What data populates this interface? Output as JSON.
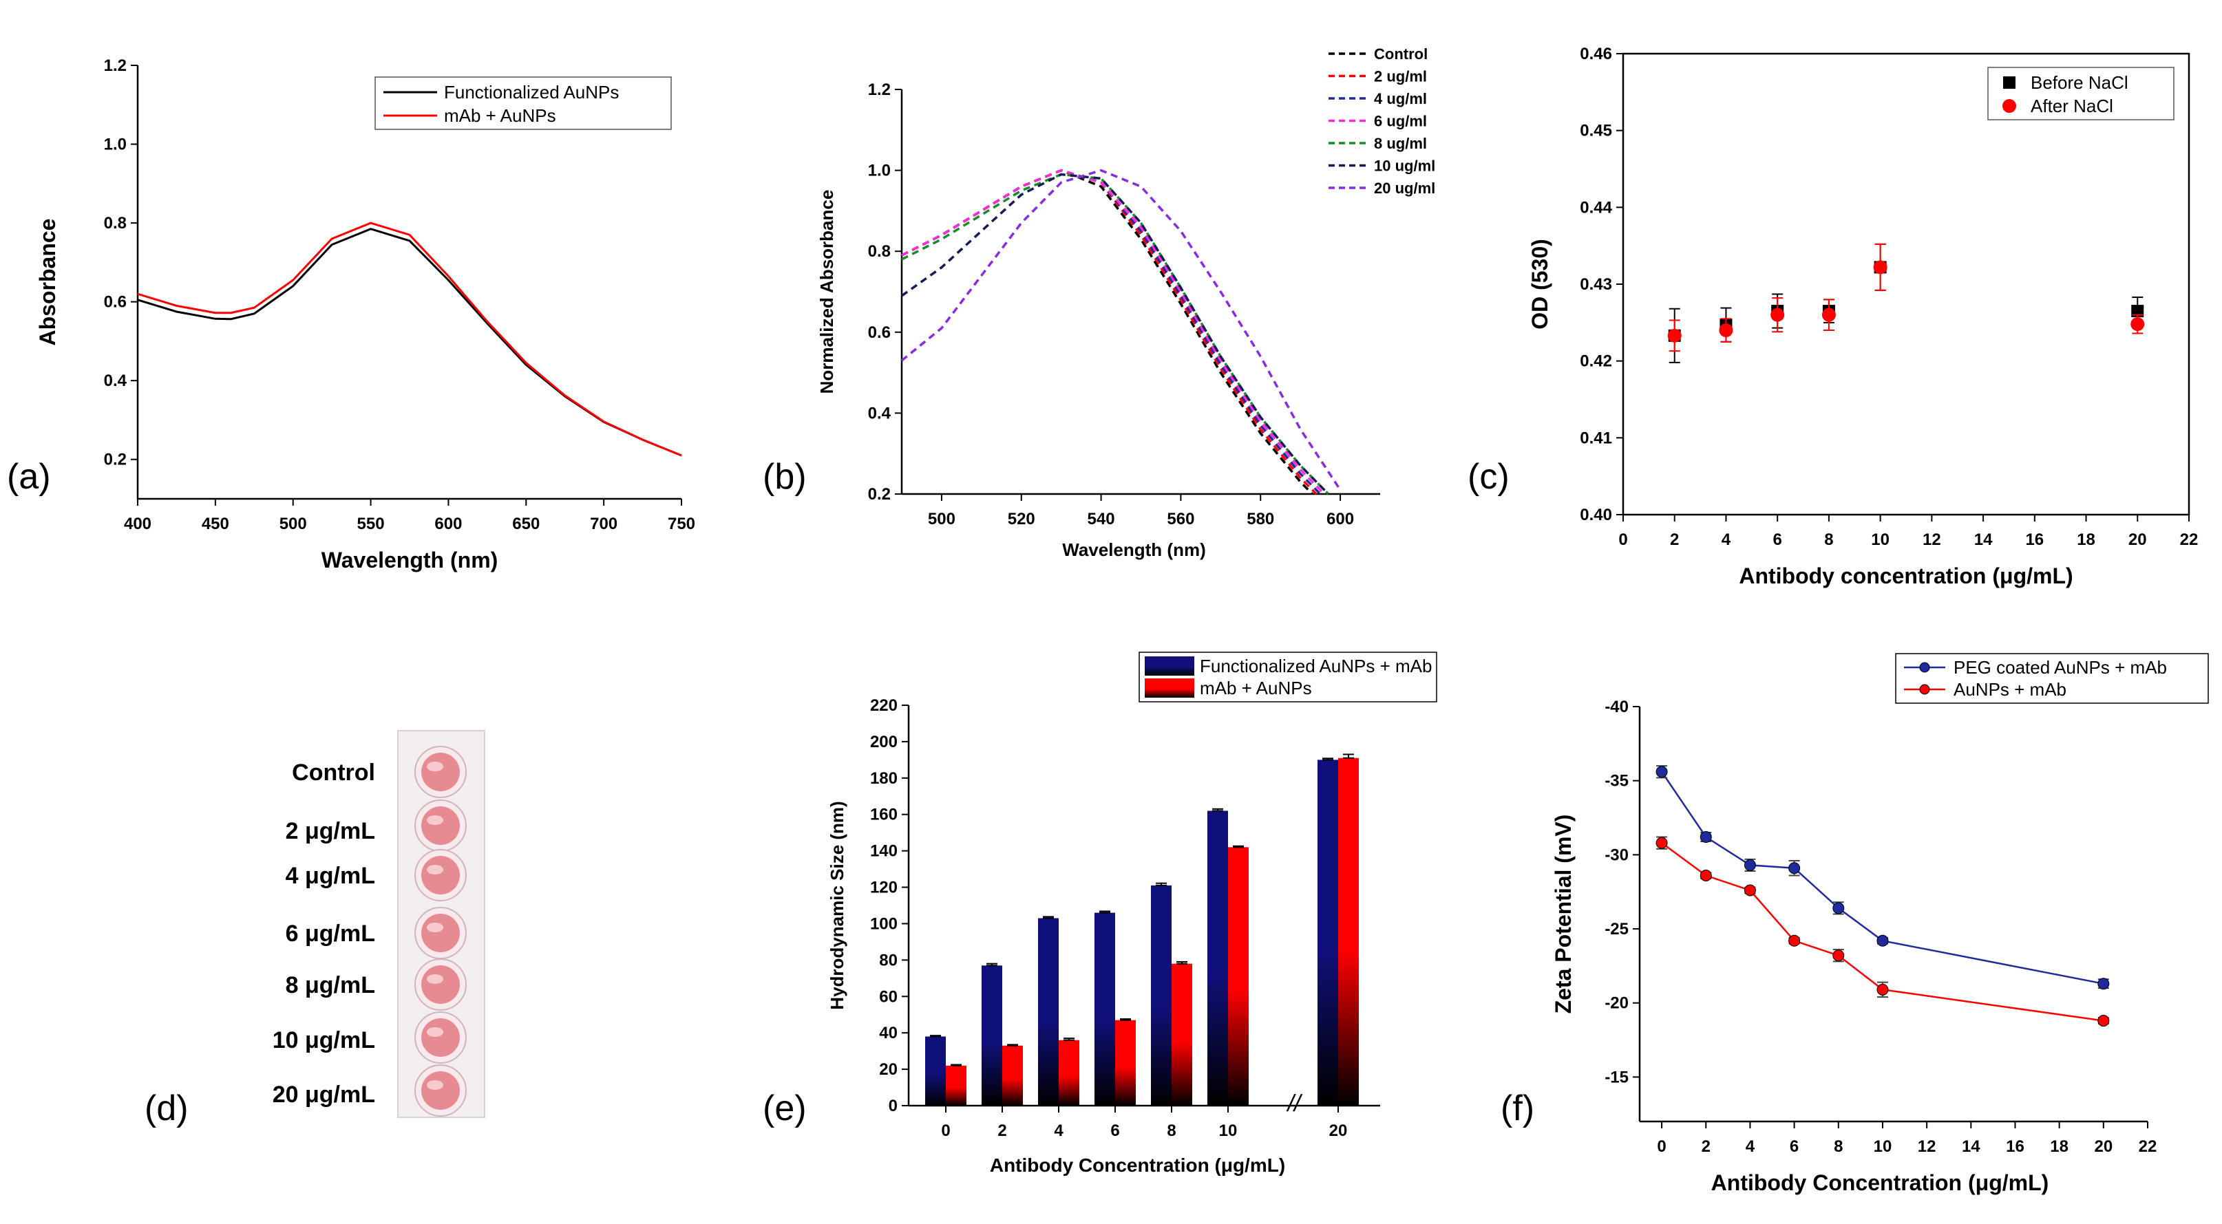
{
  "colors": {
    "black": "#000000",
    "red": "#ff0000",
    "navy": "#10107a",
    "blue": "#1f2a9c",
    "magenta": "#ff2bd6",
    "green": "#1b8a2a",
    "purple": "#8a2be2",
    "dark_navy": "#141c58",
    "plate": "#f3eef0",
    "well": "#e78b93"
  },
  "chart_data": [
    {
      "id": "a",
      "panel_label": "(a)",
      "type": "line",
      "xlabel": "Wavelength (nm)",
      "ylabel": "Absorbance",
      "xlim": [
        400,
        750
      ],
      "ylim": [
        0.1,
        1.2
      ],
      "xticks": [
        400,
        450,
        500,
        550,
        600,
        650,
        700,
        750
      ],
      "xtick_labels": [
        "400",
        "450",
        "500",
        "550",
        "600",
        "650",
        "700",
        "750"
      ],
      "yticks": [
        0.2,
        0.4,
        0.6,
        0.8,
        1.0,
        1.2
      ],
      "ytick_labels": [
        "0.2",
        "0.4",
        "0.6",
        "0.8",
        "1.0",
        "1.2"
      ],
      "legend": "top-right",
      "series": [
        {
          "name": "Functionalized AuNPs",
          "color": "#000000",
          "x": [
            400,
            425,
            450,
            460,
            475,
            500,
            525,
            550,
            575,
            600,
            625,
            650,
            675,
            700,
            725,
            750
          ],
          "y": [
            0.605,
            0.575,
            0.557,
            0.556,
            0.57,
            0.64,
            0.745,
            0.785,
            0.755,
            0.655,
            0.545,
            0.44,
            0.36,
            0.295,
            0.25,
            0.21
          ]
        },
        {
          "name": "mAb + AuNPs",
          "color": "#ff0000",
          "x": [
            400,
            425,
            450,
            460,
            475,
            500,
            525,
            550,
            575,
            600,
            625,
            650,
            675,
            700,
            725,
            750
          ],
          "y": [
            0.62,
            0.59,
            0.572,
            0.572,
            0.585,
            0.655,
            0.76,
            0.8,
            0.77,
            0.665,
            0.55,
            0.445,
            0.362,
            0.296,
            0.25,
            0.21
          ]
        }
      ]
    },
    {
      "id": "b",
      "panel_label": "(b)",
      "type": "line",
      "xlabel": "Wavelength (nm)",
      "ylabel": "Normalized Absorbance",
      "xlim": [
        490,
        610
      ],
      "ylim": [
        0.2,
        1.2
      ],
      "xticks": [
        500,
        520,
        540,
        560,
        580,
        600
      ],
      "xtick_labels": [
        "500",
        "520",
        "540",
        "560",
        "580",
        "600"
      ],
      "yticks": [
        0.2,
        0.4,
        0.6,
        0.8,
        1.0,
        1.2
      ],
      "ytick_labels": [
        "0.2",
        "0.4",
        "0.6",
        "0.8",
        "1.0",
        "1.2"
      ],
      "legend": "top-right",
      "series": [
        {
          "name": "Control",
          "color": "#000000",
          "x": [
            490,
            500,
            510,
            520,
            530,
            540,
            550,
            560,
            570,
            580,
            590,
            593
          ],
          "y": [
            0.79,
            0.84,
            0.9,
            0.96,
            1.0,
            0.96,
            0.83,
            0.67,
            0.5,
            0.35,
            0.23,
            0.2
          ]
        },
        {
          "name": "2 ug/ml",
          "color": "#ff0000",
          "x": [
            490,
            500,
            510,
            520,
            530,
            540,
            550,
            560,
            570,
            580,
            590,
            594
          ],
          "y": [
            0.79,
            0.84,
            0.9,
            0.96,
            1.0,
            0.97,
            0.84,
            0.68,
            0.51,
            0.36,
            0.24,
            0.2
          ]
        },
        {
          "name": "4 ug/ml",
          "color": "#1f2a9c",
          "x": [
            490,
            500,
            510,
            520,
            530,
            540,
            550,
            560,
            570,
            580,
            590,
            595
          ],
          "y": [
            0.79,
            0.84,
            0.9,
            0.96,
            1.0,
            0.97,
            0.85,
            0.69,
            0.52,
            0.37,
            0.25,
            0.2
          ]
        },
        {
          "name": "6 ug/ml",
          "color": "#ff2bd6",
          "x": [
            490,
            500,
            510,
            520,
            530,
            540,
            550,
            560,
            570,
            580,
            590,
            596
          ],
          "y": [
            0.79,
            0.84,
            0.9,
            0.96,
            1.0,
            0.97,
            0.86,
            0.7,
            0.53,
            0.38,
            0.26,
            0.2
          ]
        },
        {
          "name": "8 ug/ml",
          "color": "#1b8a2a",
          "x": [
            490,
            500,
            510,
            520,
            530,
            540,
            550,
            560,
            570,
            580,
            590,
            597
          ],
          "y": [
            0.78,
            0.83,
            0.89,
            0.95,
            0.99,
            0.98,
            0.87,
            0.71,
            0.54,
            0.39,
            0.27,
            0.2
          ]
        },
        {
          "name": "10 ug/ml",
          "color": "#141c58",
          "x": [
            490,
            500,
            510,
            520,
            530,
            540,
            550,
            560,
            570,
            580,
            590,
            597
          ],
          "y": [
            0.69,
            0.76,
            0.85,
            0.94,
            0.99,
            0.98,
            0.87,
            0.71,
            0.54,
            0.39,
            0.27,
            0.2
          ]
        },
        {
          "name": "20 ug/ml",
          "color": "#8a2be2",
          "x": [
            490,
            500,
            510,
            520,
            530,
            540,
            550,
            560,
            570,
            580,
            590,
            600
          ],
          "y": [
            0.53,
            0.61,
            0.74,
            0.87,
            0.97,
            1.0,
            0.96,
            0.85,
            0.7,
            0.54,
            0.36,
            0.21
          ]
        }
      ]
    },
    {
      "id": "c",
      "panel_label": "(c)",
      "type": "scatter",
      "xlabel": "Antibody concentration (μg/mL)",
      "ylabel": "OD (530)",
      "xlim": [
        0,
        22
      ],
      "ylim": [
        0.4,
        0.46
      ],
      "xticks": [
        0,
        2,
        4,
        6,
        8,
        10,
        12,
        14,
        16,
        18,
        20,
        22
      ],
      "xtick_labels": [
        "0",
        "2",
        "4",
        "6",
        "8",
        "10",
        "12",
        "14",
        "16",
        "18",
        "20",
        "22"
      ],
      "yticks": [
        0.4,
        0.41,
        0.42,
        0.43,
        0.44,
        0.45,
        0.46
      ],
      "ytick_labels": [
        "0.40",
        "0.41",
        "0.42",
        "0.43",
        "0.44",
        "0.45",
        "0.46"
      ],
      "legend": "top-right",
      "series": [
        {
          "name": "Before NaCl",
          "color": "#000000",
          "marker": "square",
          "x": [
            2,
            4,
            6,
            8,
            10,
            20
          ],
          "y": [
            0.4233,
            0.4247,
            0.4265,
            0.4265,
            0.4322,
            0.4265
          ],
          "err": [
            0.0035,
            0.0022,
            0.0022,
            0.0015,
            0.003,
            0.0018
          ]
        },
        {
          "name": "After NaCl",
          "color": "#ff0000",
          "marker": "circle",
          "x": [
            2,
            4,
            6,
            8,
            10,
            20
          ],
          "y": [
            0.4233,
            0.424,
            0.426,
            0.426,
            0.4322,
            0.4248
          ],
          "err": [
            0.002,
            0.0015,
            0.0022,
            0.002,
            0.003,
            0.0012
          ]
        }
      ]
    },
    {
      "id": "e",
      "panel_label": "(e)",
      "type": "bar",
      "xlabel": "Antibody Concentration (μg/mL)",
      "ylabel": "Hydrodynamic Size (nm)",
      "categories": [
        "0",
        "2",
        "4",
        "6",
        "8",
        "10",
        "20"
      ],
      "axis_break": "//",
      "ylim": [
        0,
        220
      ],
      "yticks": [
        0,
        20,
        40,
        60,
        80,
        100,
        120,
        140,
        160,
        180,
        200,
        220
      ],
      "ytick_labels": [
        "0",
        "20",
        "40",
        "60",
        "80",
        "100",
        "120",
        "140",
        "160",
        "180",
        "200",
        "220"
      ],
      "legend": "top",
      "series": [
        {
          "name": "Functionalized AuNPs + mAb",
          "color": "#10107a",
          "values": [
            38,
            77,
            103,
            106,
            121,
            162,
            190
          ],
          "err": [
            0.5,
            1,
            0.8,
            0.8,
            1.2,
            1,
            0.8
          ]
        },
        {
          "name": "mAb + AuNPs",
          "color": "#ff0000",
          "values": [
            22,
            33,
            36,
            47,
            78,
            142,
            191
          ],
          "err": [
            0.5,
            0.5,
            1,
            0.6,
            1,
            0.6,
            2
          ]
        }
      ]
    },
    {
      "id": "f",
      "panel_label": "(f)",
      "type": "line",
      "xlabel": "Antibody Concentration (μg/mL)",
      "ylabel": "Zeta Potential (mV)",
      "xlim": [
        -1,
        22
      ],
      "ylim": [
        -12,
        -40
      ],
      "xticks": [
        0,
        2,
        4,
        6,
        8,
        10,
        12,
        14,
        16,
        18,
        20,
        22
      ],
      "xtick_labels": [
        "0",
        "2",
        "4",
        "6",
        "8",
        "10",
        "12",
        "14",
        "16",
        "18",
        "20",
        "22"
      ],
      "yticks": [
        -15,
        -20,
        -25,
        -30,
        -35,
        -40
      ],
      "ytick_labels": [
        "-15",
        "-20",
        "-25",
        "-30",
        "-35",
        "-40"
      ],
      "legend": "top-right",
      "series": [
        {
          "name": "PEG coated AuNPs + mAb",
          "color": "#1f2a9c",
          "x": [
            0,
            2,
            4,
            6,
            8,
            10,
            20
          ],
          "y": [
            -35.6,
            -31.2,
            -29.3,
            -29.1,
            -26.4,
            -24.2,
            -21.3
          ],
          "err": [
            0.4,
            0.3,
            0.4,
            0.5,
            0.4,
            0.2,
            0.3
          ]
        },
        {
          "name": "AuNPs + mAb",
          "color": "#ff0000",
          "x": [
            0,
            2,
            4,
            6,
            8,
            10,
            20
          ],
          "y": [
            -30.8,
            -28.6,
            -27.6,
            -24.2,
            -23.2,
            -20.9,
            -18.8
          ],
          "err": [
            0.4,
            0.2,
            0.2,
            0.2,
            0.4,
            0.5,
            0.2
          ]
        }
      ]
    }
  ],
  "panel_d": {
    "panel_label": "(d)",
    "wells": [
      "Control",
      "2 μg/mL",
      "4 μg/mL",
      "6 μg/mL",
      "8 μg/mL",
      "10 μg/mL",
      "20 μg/mL"
    ]
  }
}
